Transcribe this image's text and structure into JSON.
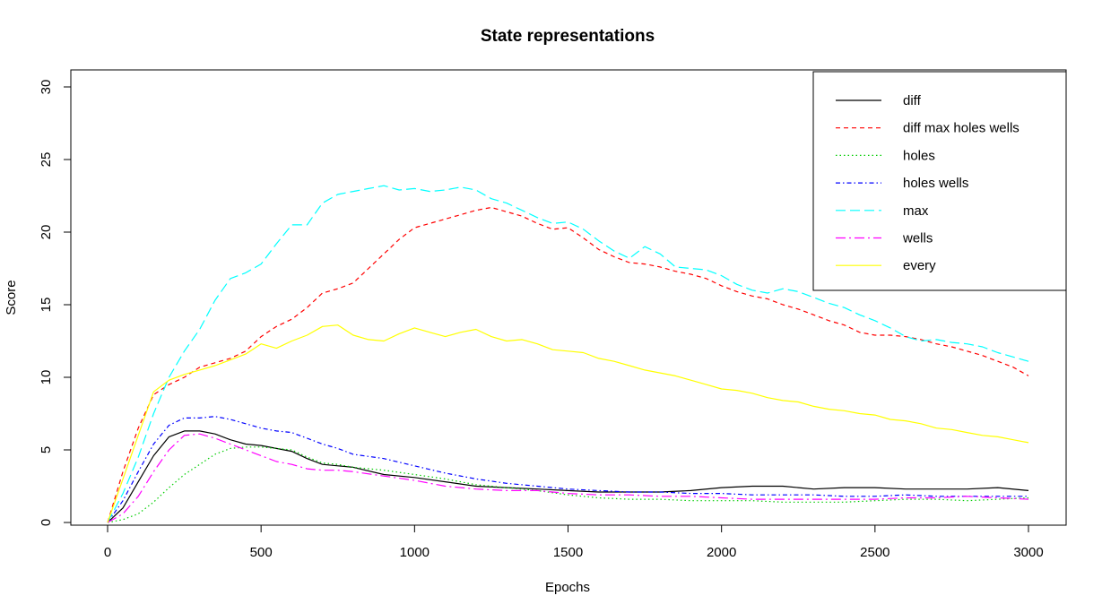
{
  "chart_data": {
    "type": "line",
    "title": "State representations",
    "xlabel": "Epochs",
    "ylabel": "Score",
    "xlim": [
      0,
      3000
    ],
    "ylim": [
      0,
      30
    ],
    "x_ticks": [
      0,
      500,
      1000,
      1500,
      2000,
      2500,
      3000
    ],
    "y_ticks": [
      0,
      5,
      10,
      15,
      20,
      25,
      30
    ],
    "grid": false,
    "legend_position": "top-right",
    "series": [
      {
        "name": "diff",
        "color": "#000000",
        "dash": "solid",
        "x": [
          0,
          50,
          100,
          150,
          200,
          250,
          300,
          350,
          400,
          450,
          500,
          550,
          600,
          650,
          700,
          750,
          800,
          900,
          1000,
          1100,
          1200,
          1300,
          1400,
          1500,
          1600,
          1700,
          1800,
          1900,
          2000,
          2100,
          2200,
          2300,
          2400,
          2500,
          2600,
          2700,
          2800,
          2900,
          3000
        ],
        "y": [
          0,
          1.0,
          2.8,
          4.6,
          5.9,
          6.3,
          6.3,
          6.1,
          5.7,
          5.4,
          5.3,
          5.1,
          4.9,
          4.4,
          4.0,
          3.9,
          3.8,
          3.3,
          3.1,
          2.8,
          2.5,
          2.4,
          2.3,
          2.2,
          2.1,
          2.1,
          2.1,
          2.2,
          2.4,
          2.5,
          2.5,
          2.3,
          2.4,
          2.4,
          2.3,
          2.3,
          2.3,
          2.4,
          2.2
        ]
      },
      {
        "name": "diff max holes wells",
        "color": "#ff0000",
        "dash": "dashed",
        "x": [
          0,
          50,
          100,
          150,
          200,
          250,
          300,
          350,
          400,
          450,
          500,
          550,
          600,
          650,
          700,
          750,
          800,
          850,
          900,
          950,
          1000,
          1050,
          1100,
          1150,
          1200,
          1250,
          1300,
          1350,
          1400,
          1450,
          1500,
          1550,
          1600,
          1650,
          1700,
          1750,
          1800,
          1850,
          1900,
          1950,
          2000,
          2050,
          2100,
          2150,
          2200,
          2250,
          2300,
          2350,
          2400,
          2450,
          2500,
          2550,
          2600,
          2650,
          2700,
          2750,
          2800,
          2850,
          2900,
          2950,
          3000
        ],
        "y": [
          0,
          3.5,
          6.5,
          8.8,
          9.5,
          10.0,
          10.7,
          11.0,
          11.3,
          11.8,
          12.8,
          13.5,
          14.0,
          14.8,
          15.8,
          16.1,
          16.5,
          17.5,
          18.5,
          19.5,
          20.3,
          20.6,
          20.9,
          21.2,
          21.5,
          21.7,
          21.4,
          21.1,
          20.6,
          20.2,
          20.3,
          19.6,
          18.8,
          18.3,
          17.9,
          17.8,
          17.6,
          17.3,
          17.1,
          16.8,
          16.3,
          15.9,
          15.6,
          15.4,
          15.0,
          14.7,
          14.3,
          13.9,
          13.6,
          13.1,
          12.9,
          12.9,
          12.8,
          12.6,
          12.3,
          12.1,
          11.8,
          11.5,
          11.1,
          10.7,
          10.1
        ]
      },
      {
        "name": "holes",
        "color": "#00cd00",
        "dash": "dotted",
        "x": [
          0,
          50,
          100,
          150,
          200,
          250,
          300,
          350,
          400,
          450,
          500,
          550,
          600,
          650,
          700,
          750,
          800,
          900,
          1000,
          1100,
          1200,
          1300,
          1400,
          1500,
          1600,
          1700,
          1800,
          1900,
          2000,
          2100,
          2200,
          2300,
          2400,
          2500,
          2600,
          2700,
          2800,
          2900,
          3000
        ],
        "y": [
          0,
          0.2,
          0.6,
          1.4,
          2.4,
          3.3,
          4.0,
          4.7,
          5.1,
          5.2,
          5.2,
          5.1,
          5.0,
          4.5,
          4.1,
          4.0,
          3.8,
          3.6,
          3.3,
          3.0,
          2.6,
          2.4,
          2.2,
          1.9,
          1.7,
          1.6,
          1.6,
          1.5,
          1.5,
          1.5,
          1.4,
          1.4,
          1.4,
          1.5,
          1.6,
          1.6,
          1.5,
          1.6,
          1.7
        ]
      },
      {
        "name": "holes wells",
        "color": "#0000ff",
        "dash": "dashdot",
        "x": [
          0,
          50,
          100,
          150,
          200,
          250,
          300,
          350,
          400,
          450,
          500,
          550,
          600,
          650,
          700,
          750,
          800,
          900,
          1000,
          1100,
          1200,
          1300,
          1400,
          1500,
          1600,
          1700,
          1800,
          1900,
          2000,
          2100,
          2200,
          2300,
          2400,
          2500,
          2600,
          2700,
          2800,
          2900,
          3000
        ],
        "y": [
          0,
          1.5,
          3.5,
          5.4,
          6.7,
          7.2,
          7.2,
          7.3,
          7.1,
          6.8,
          6.5,
          6.3,
          6.2,
          5.8,
          5.4,
          5.1,
          4.7,
          4.4,
          3.9,
          3.4,
          3.0,
          2.7,
          2.5,
          2.3,
          2.2,
          2.1,
          2.1,
          2.0,
          2.0,
          1.9,
          1.9,
          1.9,
          1.8,
          1.8,
          1.9,
          1.8,
          1.8,
          1.8,
          1.8
        ]
      },
      {
        "name": "max",
        "color": "#00ffff",
        "dash": "longdash",
        "x": [
          0,
          50,
          100,
          150,
          200,
          250,
          300,
          350,
          400,
          450,
          500,
          550,
          600,
          650,
          700,
          750,
          800,
          850,
          900,
          950,
          1000,
          1050,
          1100,
          1150,
          1200,
          1250,
          1300,
          1350,
          1400,
          1450,
          1500,
          1550,
          1600,
          1650,
          1700,
          1750,
          1800,
          1850,
          1900,
          1950,
          2000,
          2050,
          2100,
          2150,
          2200,
          2250,
          2300,
          2350,
          2400,
          2450,
          2500,
          2550,
          2600,
          2650,
          2700,
          2750,
          2800,
          2850,
          2900,
          2950,
          3000
        ],
        "y": [
          0,
          2.0,
          4.5,
          7.5,
          10.0,
          11.8,
          13.3,
          15.3,
          16.8,
          17.2,
          17.8,
          19.2,
          20.5,
          20.5,
          22.0,
          22.6,
          22.8,
          23.0,
          23.2,
          22.9,
          23.0,
          22.8,
          22.9,
          23.1,
          22.9,
          22.3,
          22.0,
          21.5,
          21.0,
          20.6,
          20.7,
          20.2,
          19.4,
          18.7,
          18.2,
          19.0,
          18.5,
          17.6,
          17.5,
          17.4,
          17.0,
          16.4,
          16.0,
          15.8,
          16.1,
          15.9,
          15.5,
          15.1,
          14.8,
          14.3,
          13.9,
          13.4,
          12.8,
          12.5,
          12.6,
          12.4,
          12.3,
          12.1,
          11.7,
          11.4,
          11.1
        ]
      },
      {
        "name": "wells",
        "color": "#ff00ff",
        "dash": "longdashdot",
        "x": [
          0,
          50,
          100,
          150,
          200,
          250,
          300,
          350,
          400,
          450,
          500,
          550,
          600,
          650,
          700,
          750,
          800,
          900,
          1000,
          1100,
          1200,
          1300,
          1400,
          1500,
          1600,
          1700,
          1800,
          1900,
          2000,
          2100,
          2200,
          2300,
          2400,
          2500,
          2600,
          2700,
          2800,
          2900,
          3000
        ],
        "y": [
          0,
          0.6,
          1.8,
          3.5,
          5.0,
          6.0,
          6.1,
          5.8,
          5.4,
          5.0,
          4.6,
          4.2,
          4.0,
          3.7,
          3.6,
          3.6,
          3.5,
          3.2,
          2.9,
          2.5,
          2.3,
          2.2,
          2.2,
          2.0,
          1.9,
          1.9,
          1.8,
          1.8,
          1.7,
          1.6,
          1.6,
          1.6,
          1.6,
          1.6,
          1.7,
          1.7,
          1.8,
          1.7,
          1.6
        ]
      },
      {
        "name": "every",
        "color": "#ffff00",
        "dash": "solid",
        "x": [
          0,
          50,
          100,
          150,
          200,
          250,
          300,
          350,
          400,
          450,
          500,
          550,
          600,
          650,
          700,
          750,
          800,
          850,
          900,
          950,
          1000,
          1050,
          1100,
          1150,
          1200,
          1250,
          1300,
          1350,
          1400,
          1450,
          1500,
          1550,
          1600,
          1650,
          1700,
          1750,
          1800,
          1850,
          1900,
          1950,
          2000,
          2050,
          2100,
          2150,
          2200,
          2250,
          2300,
          2350,
          2400,
          2450,
          2500,
          2550,
          2600,
          2650,
          2700,
          2750,
          2800,
          2850,
          2900,
          2950,
          3000
        ],
        "y": [
          0,
          3.0,
          6.0,
          9.0,
          9.8,
          10.2,
          10.5,
          10.8,
          11.2,
          11.6,
          12.3,
          12.0,
          12.5,
          12.9,
          13.5,
          13.6,
          12.9,
          12.6,
          12.5,
          13.0,
          13.4,
          13.1,
          12.8,
          13.1,
          13.3,
          12.8,
          12.5,
          12.6,
          12.3,
          11.9,
          11.8,
          11.7,
          11.3,
          11.1,
          10.8,
          10.5,
          10.3,
          10.1,
          9.8,
          9.5,
          9.2,
          9.1,
          8.9,
          8.6,
          8.4,
          8.3,
          8.0,
          7.8,
          7.7,
          7.5,
          7.4,
          7.1,
          7.0,
          6.8,
          6.5,
          6.4,
          6.2,
          6.0,
          5.9,
          5.7,
          5.5
        ]
      }
    ]
  }
}
